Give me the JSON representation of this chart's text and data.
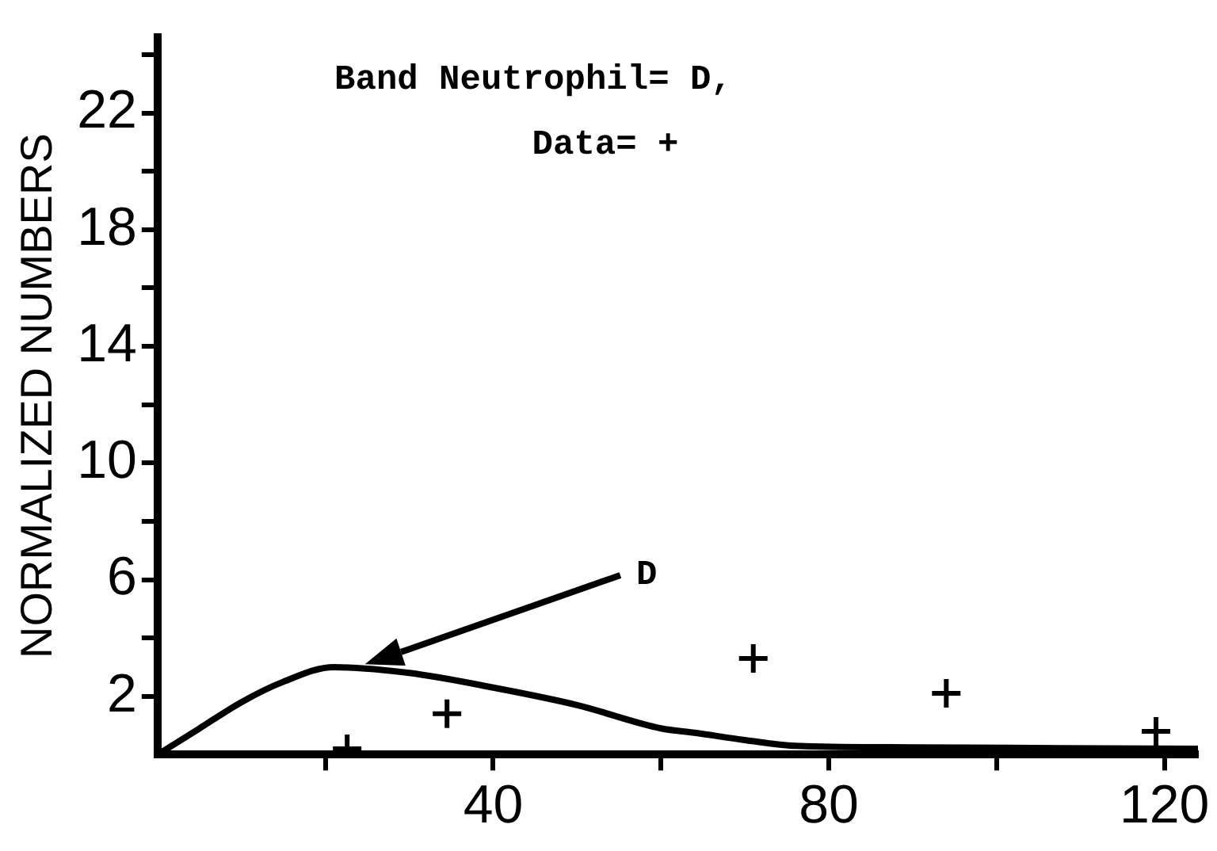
{
  "chart_data": {
    "type": "line",
    "ylabel": "NORMALIZED NUMBERS",
    "xlim": [
      0,
      124
    ],
    "xticks": [
      {
        "value": 20,
        "label": null
      },
      40,
      {
        "value": 60,
        "label": null
      },
      80,
      {
        "value": 100,
        "label": null
      },
      120
    ],
    "ylim": [
      0,
      24.6
    ],
    "yticks": [
      2,
      {
        "value": 4,
        "label": null
      },
      6,
      {
        "value": 8,
        "label": null
      },
      10,
      {
        "value": 12,
        "label": null
      },
      14,
      {
        "value": 16,
        "label": null
      },
      18,
      {
        "value": 20,
        "label": null
      },
      22,
      {
        "value": 24,
        "label": null
      }
    ],
    "series": [
      {
        "type": "line",
        "color": "#000000",
        "marker": "none",
        "x": [
          0,
          5,
          10,
          15,
          21,
          30,
          40,
          50,
          60,
          64,
          70,
          76,
          90,
          124
        ],
        "values": [
          0,
          0.9,
          1.8,
          2.5,
          3.0,
          2.8,
          2.3,
          1.7,
          0.9,
          0.75,
          0.5,
          0.3,
          0.25,
          0.2
        ]
      },
      {
        "type": "scatter",
        "color": "#000000",
        "marker": "cross",
        "x": [
          22.6,
          34.5,
          71,
          94,
          119
        ],
        "values": [
          0.2,
          1.4,
          3.3,
          2.1,
          0.8
        ]
      }
    ],
    "annotations": [
      "Band Neutrophil= D,",
      "Data= +",
      "D"
    ],
    "legend": false
  }
}
